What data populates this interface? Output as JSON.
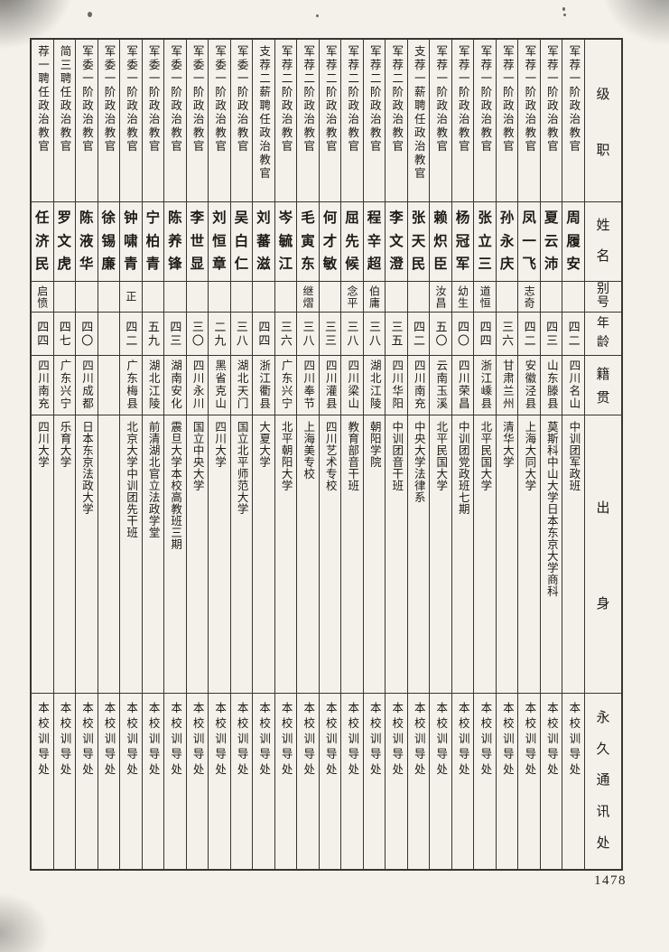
{
  "page": {
    "number": "1478"
  },
  "headers": {
    "rank": "级职",
    "name": "姓名",
    "alias": "别号",
    "age": "年龄",
    "origin": "籍贯",
    "education": "出身",
    "contact": "永久通讯处"
  },
  "columns": [
    {
      "rank": "荐一聘任政治教官",
      "name": "任济民",
      "alias": "启愤",
      "age": "四四",
      "origin": "四川南充",
      "education": "四川大学",
      "contact": "本校训导处"
    },
    {
      "rank": "简三聘任政治教官",
      "name": "罗文虎",
      "alias": "",
      "age": "四七",
      "origin": "广东兴宁",
      "education": "乐育大学",
      "contact": "本校训导处"
    },
    {
      "rank": "军委一阶政治教官",
      "name": "陈液华",
      "alias": "",
      "age": "四〇",
      "origin": "四川成都",
      "education": "日本东京法政大学",
      "contact": "本校训导处"
    },
    {
      "rank": "军委一阶政治教官",
      "name": "徐锡廉",
      "alias": "",
      "age": "",
      "origin": "",
      "education": "",
      "contact": "本校训导处"
    },
    {
      "rank": "军委一阶政治教官",
      "name": "钟啸青",
      "alias": "正",
      "age": "四二",
      "origin": "广东梅县",
      "education": "北京大学中训团先干班",
      "contact": "本校训导处"
    },
    {
      "rank": "军委一阶政治教官",
      "name": "宁柏青",
      "alias": "",
      "age": "五九",
      "origin": "湖北江陵",
      "education": "前清湖北官立法政学堂",
      "contact": "本校训导处"
    },
    {
      "rank": "军委一阶政治教官",
      "name": "陈养锋",
      "alias": "",
      "age": "四三",
      "origin": "湖南安化",
      "education": "震旦大学本校高教班三期",
      "contact": "本校训导处"
    },
    {
      "rank": "军委一阶政治教官",
      "name": "李世显",
      "alias": "",
      "age": "三〇",
      "origin": "四川永川",
      "education": "国立中央大学",
      "contact": "本校训导处"
    },
    {
      "rank": "军委一阶政治教官",
      "name": "刘恒章",
      "alias": "",
      "age": "二九",
      "origin": "黑省克山",
      "education": "四川大学",
      "contact": "本校训导处"
    },
    {
      "rank": "军委一阶政治教官",
      "name": "吴白仁",
      "alias": "",
      "age": "三八",
      "origin": "湖北天门",
      "education": "国立北平师范大学",
      "contact": "本校训导处"
    },
    {
      "rank": "支荐二薪聘任政治教官",
      "name": "刘蕃滋",
      "alias": "",
      "age": "四四",
      "origin": "浙江衢县",
      "education": "大夏大学",
      "contact": "本校训导处"
    },
    {
      "rank": "军荐二阶政治教官",
      "name": "岑毓江",
      "alias": "",
      "age": "三六",
      "origin": "广东兴宁",
      "education": "北平朝阳大学",
      "contact": "本校训导处"
    },
    {
      "rank": "军荐二阶政治教官",
      "name": "毛寅东",
      "alias": "继熠",
      "age": "三八",
      "origin": "四川奉节",
      "education": "上海美专校",
      "contact": "本校训导处"
    },
    {
      "rank": "军荐二阶政治教官",
      "name": "何才敏",
      "alias": "",
      "age": "三三",
      "origin": "四川灌县",
      "education": "四川艺术专校",
      "contact": "本校训导处"
    },
    {
      "rank": "军荐二阶政治教官",
      "name": "屈先候",
      "alias": "念平",
      "age": "三八",
      "origin": "四川梁山",
      "education": "教育部音干班",
      "contact": "本校训导处"
    },
    {
      "rank": "军荐二阶政治教官",
      "name": "程辛超",
      "alias": "伯庸",
      "age": "三八",
      "origin": "湖北江陵",
      "education": "朝阳学院",
      "contact": "本校训导处"
    },
    {
      "rank": "军荐二阶政治教官",
      "name": "李文澄",
      "alias": "",
      "age": "三五",
      "origin": "四川华阳",
      "education": "中训团音干班",
      "contact": "本校训导处"
    },
    {
      "rank": "支荐一薪聘任政治教官",
      "name": "张天民",
      "alias": "",
      "age": "四二",
      "origin": "四川南充",
      "education": "中央大学法律系",
      "contact": "本校训导处"
    },
    {
      "rank": "军荐一阶政治教官",
      "name": "赖炽臣",
      "alias": "汝昌",
      "age": "五〇",
      "origin": "云南玉溪",
      "education": "北平民国大学",
      "contact": "本校训导处"
    },
    {
      "rank": "军荐一阶政治教官",
      "name": "杨冠军",
      "alias": "幼生",
      "age": "四〇",
      "origin": "四川荣昌",
      "education": "中训团党政班七期",
      "contact": "本校训导处"
    },
    {
      "rank": "军荐一阶政治教官",
      "name": "张立三",
      "alias": "道恒",
      "age": "四四",
      "origin": "浙江嵊县",
      "education": "北平民国大学",
      "contact": "本校训导处"
    },
    {
      "rank": "军荐一阶政治教官",
      "name": "孙永庆",
      "alias": "",
      "age": "三六",
      "origin": "甘肃兰州",
      "education": "清华大学",
      "contact": "本校训导处"
    },
    {
      "rank": "军荐一阶政治教官",
      "name": "凤一飞",
      "alias": "志奇",
      "age": "四二",
      "origin": "安徽泾县",
      "education": "上海大同大学",
      "contact": "本校训导处"
    },
    {
      "rank": "军荐一阶政治教官",
      "name": "夏云沛",
      "alias": "",
      "age": "四三",
      "origin": "山东滕县",
      "education": "莫斯科中山大学日本东京大学商科",
      "contact": "本校训导处"
    },
    {
      "rank": "军荐一阶政治教官",
      "name": "周履安",
      "alias": "",
      "age": "四二",
      "origin": "四川名山",
      "education": "中训团军政班",
      "contact": "本校训导处"
    }
  ]
}
